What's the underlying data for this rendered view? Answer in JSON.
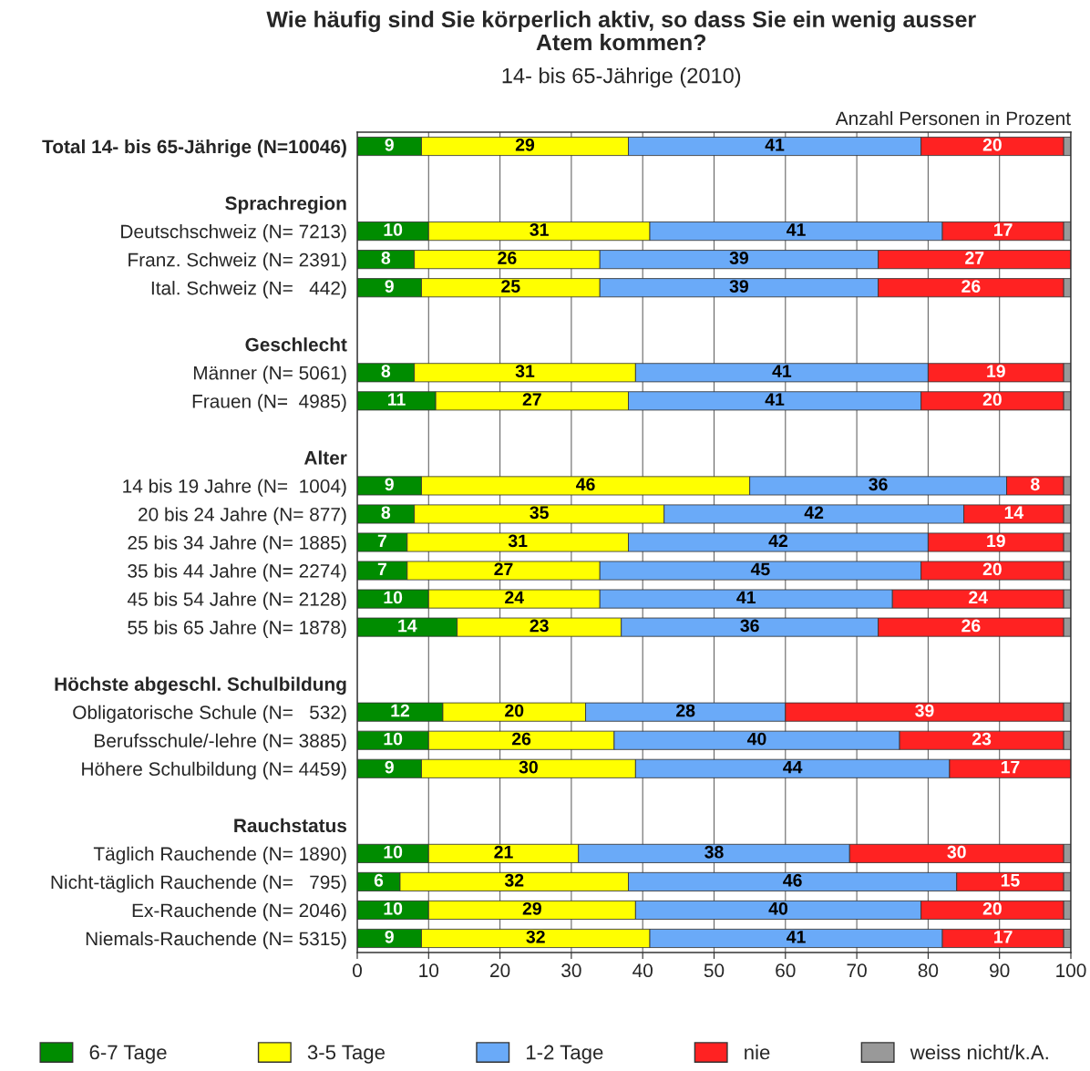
{
  "chart_data": {
    "type": "bar",
    "orientation": "horizontal",
    "stacked": true,
    "title": "Wie häufig sind Sie körperlich aktiv, so dass Sie ein wenig ausser\nAtem kommen?",
    "subtitle": "14- bis 65-Jährige (2010)",
    "annotations": [
      "Anzahl Personen in Prozent"
    ],
    "categories": [
      "Total 14- bis 65-Jährige (N=10046)",
      null,
      "Sprachregion",
      "Deutschschweiz (N= 7213)",
      "Franz. Schweiz (N= 2391)",
      "Ital. Schweiz (N=   442)",
      null,
      "Geschlecht",
      "Männer (N= 5061)",
      "Frauen (N=  4985)",
      null,
      "Alter",
      "14 bis 19 Jahre (N=  1004)",
      "20 bis 24 Jahre (N= 877)",
      "25 bis 34 Jahre (N= 1885)",
      "35 bis 44 Jahre (N= 2274)",
      "45 bis 54 Jahre (N= 2128)",
      "55 bis 65 Jahre (N= 1878)",
      null,
      "Höchste abgeschl. Schulbildung",
      "Obligatorische Schule (N=   532)",
      "Berufsschule/-lehre (N= 3885)",
      "Höhere Schulbildung (N= 4459)",
      null,
      "Rauchstatus",
      "Täglich Rauchende (N= 1890)",
      "Nicht-täglich Rauchende (N=   795)",
      "Ex-Rauchende (N= 2046)",
      "Niemals-Rauchende (N= 5315)"
    ],
    "series": [
      {
        "name": "6-7 Tage",
        "color": "#008c00",
        "values": [
          9,
          null,
          null,
          10,
          8,
          9,
          null,
          null,
          8,
          11,
          null,
          null,
          9,
          8,
          7,
          7,
          10,
          14,
          null,
          null,
          12,
          10,
          9,
          null,
          null,
          10,
          6,
          10,
          9
        ],
        "value_labels": [
          "9",
          null,
          null,
          "10",
          "8",
          "9",
          null,
          null,
          "8",
          "11",
          null,
          null,
          "9",
          "8",
          "7",
          "7",
          "10",
          "14",
          null,
          null,
          "12",
          "10",
          "9",
          null,
          null,
          "10",
          "6",
          "10",
          "9"
        ]
      },
      {
        "name": "3-5 Tage",
        "color": "#ffff00",
        "values": [
          29,
          null,
          null,
          31,
          26,
          25,
          null,
          null,
          31,
          27,
          null,
          null,
          46,
          35,
          31,
          27,
          24,
          23,
          null,
          null,
          20,
          26,
          30,
          null,
          null,
          21,
          32,
          29,
          32
        ],
        "value_labels": [
          "29",
          null,
          null,
          "31",
          "26",
          "25",
          null,
          null,
          "31",
          "27",
          null,
          null,
          "46",
          "35",
          "31",
          "27",
          "24",
          "23",
          null,
          null,
          "20",
          "26",
          "30",
          null,
          null,
          "21",
          "32",
          "29",
          "32"
        ]
      },
      {
        "name": "1-2 Tage",
        "color": "#6aaaf8",
        "values": [
          41,
          null,
          null,
          41,
          39,
          39,
          null,
          null,
          41,
          41,
          null,
          null,
          36,
          42,
          42,
          45,
          41,
          36,
          null,
          null,
          28,
          40,
          44,
          null,
          null,
          38,
          46,
          40,
          41
        ],
        "value_labels": [
          "41",
          null,
          null,
          "41",
          "39",
          "39",
          null,
          null,
          "41",
          "41",
          null,
          null,
          "36",
          "42",
          "42",
          "45",
          "41",
          "36",
          null,
          null,
          "28",
          "40",
          "44",
          null,
          null,
          "38",
          "46",
          "40",
          "41"
        ]
      },
      {
        "name": "nie",
        "color": "#ff2222",
        "values": [
          20,
          null,
          null,
          17,
          27,
          26,
          null,
          null,
          19,
          20,
          null,
          null,
          8,
          14,
          19,
          20,
          24,
          26,
          null,
          null,
          39,
          23,
          17,
          null,
          null,
          30,
          15,
          20,
          17
        ],
        "value_labels": [
          "20",
          null,
          null,
          "17",
          "27",
          "26",
          null,
          null,
          "19",
          "20",
          null,
          null,
          "8",
          "14",
          "19",
          "20",
          "24",
          "26",
          null,
          null,
          "39",
          "23",
          "17",
          null,
          null,
          "30",
          "15",
          "20",
          "17"
        ]
      },
      {
        "name": "weiss nicht/k.A.",
        "color": "#999999",
        "values": [
          1,
          null,
          null,
          1,
          null,
          1,
          null,
          null,
          1,
          1,
          null,
          null,
          1,
          1,
          1,
          1,
          1,
          1,
          null,
          null,
          1,
          1,
          null,
          null,
          null,
          1,
          1,
          1,
          1
        ]
      }
    ],
    "xlim": [
      0,
      100
    ],
    "xticks": [
      0,
      10,
      20,
      30,
      40,
      50,
      60,
      70,
      80,
      90,
      100
    ],
    "grid": "x",
    "legend": "bottom"
  }
}
